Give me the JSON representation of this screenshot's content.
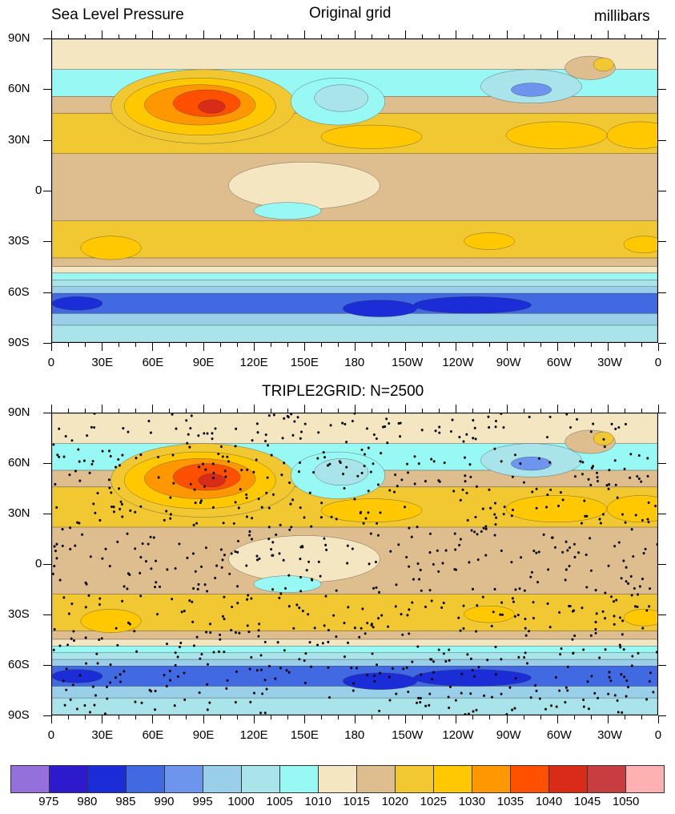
{
  "top_panel": {
    "left_title": "Sea Level Pressure",
    "center_title": "Original grid",
    "right_title": "millibars"
  },
  "bottom_panel": {
    "center_title": "TRIPLE2GRID: N=2500"
  },
  "axes": {
    "lat_labels": [
      "90N",
      "60N",
      "30N",
      "0",
      "30S",
      "60S",
      "90S"
    ],
    "lon_labels": [
      "0",
      "30E",
      "60E",
      "90E",
      "120E",
      "150E",
      "180",
      "150W",
      "120W",
      "90W",
      "60W",
      "30W",
      "0"
    ]
  },
  "chart_data": {
    "type": "heatmap",
    "title": "Sea Level Pressure",
    "units": "millibars",
    "xlim": [
      0,
      360
    ],
    "ylim": [
      -90,
      90
    ],
    "levels": [
      975,
      980,
      985,
      990,
      995,
      1000,
      1005,
      1010,
      1015,
      1020,
      1025,
      1030,
      1035,
      1040,
      1045,
      1050
    ],
    "colors": [
      "#9370DB",
      "#2E1ACD",
      "#1B2DD6",
      "#4169E1",
      "#6E95EE",
      "#9ACFEA",
      "#A8E4EA",
      "#98F8F4",
      "#F5E6C2",
      "#DEBE8E",
      "#F2C832",
      "#FFC800",
      "#FF9800",
      "#FF5000",
      "#D82C19",
      "#C83E40",
      "#FFB0B0"
    ],
    "zonal_bands": [
      [
        90,
        72,
        1010
      ],
      [
        72,
        56,
        1005
      ],
      [
        56,
        46,
        1015
      ],
      [
        46,
        22,
        1020
      ],
      [
        22,
        -18,
        1015
      ],
      [
        -18,
        -40,
        1020
      ],
      [
        -40,
        -45,
        1015
      ],
      [
        -45,
        -49,
        1010
      ],
      [
        -49,
        -53,
        1005
      ],
      [
        -53,
        -57,
        1000
      ],
      [
        -57,
        -61,
        995
      ],
      [
        -61,
        -73,
        985
      ],
      [
        -73,
        -80,
        995
      ],
      [
        -80,
        -90,
        1000
      ]
    ],
    "features": [
      {
        "lon": 90,
        "lat": 50,
        "rlon": 55,
        "rlat": 22,
        "value": 1020
      },
      {
        "lon": 88,
        "lat": 50,
        "rlon": 45,
        "rlat": 17,
        "value": 1025
      },
      {
        "lon": 88,
        "lat": 51,
        "rlon": 33,
        "rlat": 12,
        "value": 1030
      },
      {
        "lon": 92,
        "lat": 52,
        "rlon": 20,
        "rlat": 8,
        "value": 1035
      },
      {
        "lon": 95,
        "lat": 50,
        "rlon": 8,
        "rlat": 4,
        "value": 1040
      },
      {
        "lon": 170,
        "lat": 53,
        "rlon": 28,
        "rlat": 14,
        "value": 1005
      },
      {
        "lon": 172,
        "lat": 55,
        "rlon": 16,
        "rlat": 8,
        "value": 1000
      },
      {
        "lon": 190,
        "lat": 32,
        "rlon": 30,
        "rlat": 7,
        "value": 1025
      },
      {
        "lon": 300,
        "lat": 33,
        "rlon": 30,
        "rlat": 8,
        "value": 1025
      },
      {
        "lon": 350,
        "lat": 33,
        "rlon": 20,
        "rlat": 8,
        "value": 1025
      },
      {
        "lon": 320,
        "lat": 73,
        "rlon": 15,
        "rlat": 7,
        "value": 1015
      },
      {
        "lon": 328,
        "lat": 75,
        "rlon": 6,
        "rlat": 4,
        "value": 1020
      },
      {
        "lon": 285,
        "lat": 62,
        "rlon": 30,
        "rlat": 10,
        "value": 1000
      },
      {
        "lon": 285,
        "lat": 60,
        "rlon": 12,
        "rlat": 4,
        "value": 990
      },
      {
        "lon": 150,
        "lat": 3,
        "rlon": 45,
        "rlat": 14,
        "value": 1010
      },
      {
        "lon": 140,
        "lat": -12,
        "rlon": 20,
        "rlat": 5,
        "value": 1005
      },
      {
        "lon": 35,
        "lat": -34,
        "rlon": 18,
        "rlat": 7,
        "value": 1025
      },
      {
        "lon": 260,
        "lat": -30,
        "rlon": 15,
        "rlat": 5,
        "value": 1025
      },
      {
        "lon": 352,
        "lat": -32,
        "rlon": 12,
        "rlat": 5,
        "value": 1025
      },
      {
        "lon": 15,
        "lat": -67,
        "rlon": 15,
        "rlat": 4,
        "value": 980
      },
      {
        "lon": 195,
        "lat": -70,
        "rlon": 22,
        "rlat": 5,
        "value": 980
      },
      {
        "lon": 250,
        "lat": -68,
        "rlon": 35,
        "rlat": 5,
        "value": 980
      }
    ]
  }
}
